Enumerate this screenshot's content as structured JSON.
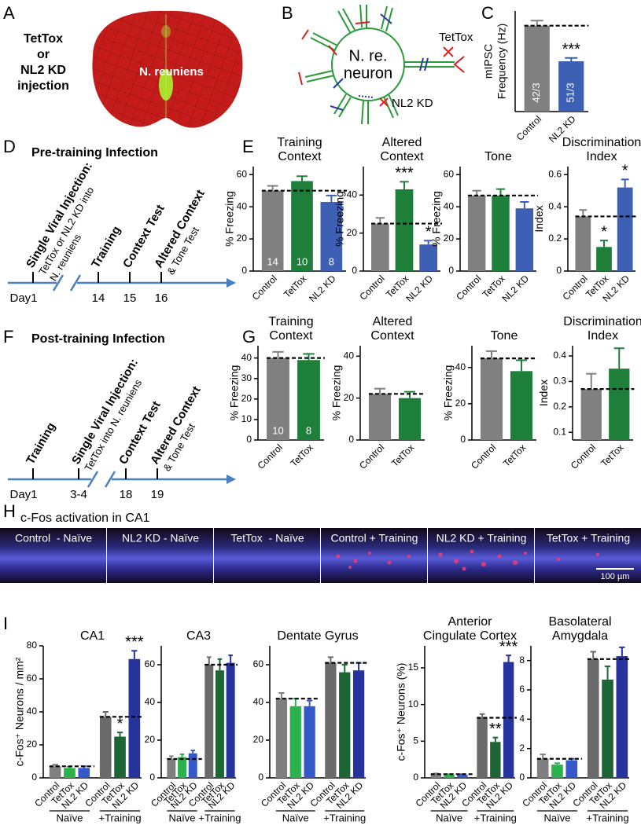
{
  "panel_letters": [
    "A",
    "B",
    "C",
    "D",
    "E",
    "F",
    "G",
    "H",
    "I"
  ],
  "panel_a": {
    "injection": [
      "TetTox",
      "or",
      "NL2 KD",
      "injection"
    ],
    "target": "N. reuniens"
  },
  "panel_b": {
    "neuron": [
      "N. re.",
      "neuron"
    ],
    "tettox": "TetTox",
    "nl2kd": "NL2 KD"
  },
  "panel_d": {
    "title": "Pre-training Infection",
    "days": [
      "Day1",
      "14",
      "15",
      "16"
    ],
    "events": [
      [
        "Single Viral Injection:",
        "TetTox or NL2 KD into",
        "N. reuniens"
      ],
      [
        "Training"
      ],
      [
        "Context Test"
      ],
      [
        "Altered Context",
        "& Tone Test"
      ]
    ]
  },
  "panel_f": {
    "title": "Post-training Infection",
    "days": [
      "Day1",
      "3-4",
      "18",
      "19"
    ],
    "events": [
      [
        "Training"
      ],
      [
        "Single Viral Injection:",
        "TetTox into N. reuniens"
      ],
      [
        "Context Test"
      ],
      [
        "Altered Context",
        "& Tone Test"
      ]
    ]
  },
  "panel_h": {
    "title": "c-Fos activation in CA1",
    "tiles": [
      "Control  - Naïve",
      "NL2 KD - Naïve",
      "TetTox  - Naïve",
      "Control + Training",
      "NL2 KD + Training",
      "TetTox + Training"
    ],
    "scale_bar": "100 µm"
  },
  "chart_data": [
    {
      "type": "bar",
      "ylabel": [
        "mIPSC",
        "Frequency (Hz)"
      ],
      "categories": [
        "Control",
        "NL2 KD"
      ],
      "values": [
        2.05,
        1.2
      ],
      "errors": [
        0.12,
        0.08
      ],
      "colors": [
        "#808080",
        "#3d60b5"
      ],
      "ylim": [
        0,
        2.4
      ],
      "significance": [
        null,
        "***"
      ],
      "n_labels": [
        "42/3",
        "51/3"
      ],
      "dashed_control_line": true
    },
    {
      "type": "bar",
      "title": [
        "Training",
        "Context"
      ],
      "ylabel": [
        "% Freezing"
      ],
      "categories": [
        "Control",
        "TetTox",
        "NL2 KD"
      ],
      "values": [
        50,
        56,
        43
      ],
      "errors": [
        3,
        3,
        4
      ],
      "colors": [
        "#808080",
        "#1e7f3a",
        "#3d60b5"
      ],
      "ylim": [
        0,
        65
      ],
      "yticks": [
        0,
        20,
        40,
        60
      ],
      "n_labels": [
        "14",
        "10",
        "8"
      ],
      "dashed_control_line": true
    },
    {
      "type": "bar",
      "title": [
        "Altered",
        "Context"
      ],
      "ylabel": [
        "% Freezing"
      ],
      "categories": [
        "Control",
        "TetTox",
        "NL2 KD"
      ],
      "values": [
        25,
        43,
        14
      ],
      "errors": [
        3,
        4,
        2
      ],
      "colors": [
        "#808080",
        "#1e7f3a",
        "#3d60b5"
      ],
      "ylim": [
        0,
        55
      ],
      "yticks": [
        0,
        20,
        40
      ],
      "significance": [
        null,
        "***",
        "*"
      ],
      "dashed_control_line": true
    },
    {
      "type": "bar",
      "title": [
        "Tone"
      ],
      "ylabel": [
        "% Freezing"
      ],
      "categories": [
        "Control",
        "TetTox",
        "NL2 KD"
      ],
      "values": [
        47,
        47,
        39
      ],
      "errors": [
        3,
        4,
        4
      ],
      "colors": [
        "#808080",
        "#1e7f3a",
        "#3d60b5"
      ],
      "ylim": [
        0,
        65
      ],
      "yticks": [
        0,
        20,
        40,
        60
      ],
      "dashed_control_line": true
    },
    {
      "type": "bar",
      "title": [
        "Discrimination",
        "Index"
      ],
      "ylabel": [
        "Index"
      ],
      "categories": [
        "Control",
        "TetTox",
        "NL2 KD"
      ],
      "values": [
        0.34,
        0.15,
        0.52
      ],
      "errors": [
        0.04,
        0.04,
        0.05
      ],
      "colors": [
        "#808080",
        "#1e7f3a",
        "#3d60b5"
      ],
      "ylim": [
        0,
        0.65
      ],
      "yticks": [
        0,
        0.2,
        0.4,
        0.6
      ],
      "significance": [
        null,
        "*",
        "*"
      ],
      "dashed_control_line": true
    },
    {
      "type": "bar",
      "title": [
        "Training",
        "Context"
      ],
      "ylabel": [
        "% Freezing"
      ],
      "categories": [
        "Control",
        "TetTox"
      ],
      "values": [
        40,
        39
      ],
      "errors": [
        3,
        3
      ],
      "colors": [
        "#808080",
        "#1e7f3a"
      ],
      "ylim": [
        0,
        46
      ],
      "yticks": [
        0,
        10,
        20,
        30,
        40
      ],
      "n_labels": [
        "10",
        "8"
      ],
      "dashed_control_line": true
    },
    {
      "type": "bar",
      "title": [
        "Altered",
        "Context"
      ],
      "ylabel": [
        "% Freezing"
      ],
      "categories": [
        "Control",
        "TetTox"
      ],
      "values": [
        22,
        20
      ],
      "errors": [
        2.5,
        3
      ],
      "colors": [
        "#808080",
        "#1e7f3a"
      ],
      "ylim": [
        0,
        45
      ],
      "yticks": [
        0,
        20,
        40
      ],
      "dashed_control_line": true
    },
    {
      "type": "bar",
      "title": [
        "Tone"
      ],
      "ylabel": [
        "% Freezing"
      ],
      "categories": [
        "Control",
        "TetTox"
      ],
      "values": [
        45,
        38
      ],
      "errors": [
        4,
        6
      ],
      "colors": [
        "#808080",
        "#1e7f3a"
      ],
      "ylim": [
        0,
        52
      ],
      "yticks": [
        0,
        20,
        40
      ],
      "dashed_control_line": true
    },
    {
      "type": "bar",
      "title": [
        "Discrimination",
        "Index"
      ],
      "ylabel": [
        "Index"
      ],
      "categories": [
        "Control",
        "TetTox"
      ],
      "values": [
        0.27,
        0.35
      ],
      "errors": [
        0.06,
        0.08
      ],
      "colors": [
        "#808080",
        "#1e7f3a"
      ],
      "ylim": [
        0.07,
        0.44
      ],
      "yticks": [
        0.1,
        0.2,
        0.3,
        0.4
      ],
      "dashed_control_line": true
    },
    {
      "type": "bar",
      "title": [
        "CA1"
      ],
      "ylabel": [
        "c-Fos⁺ Neurons / mm²"
      ],
      "categories": [
        "Control",
        "TetTox",
        "NL2 KD",
        "Control",
        "TetTox",
        "NL2 KD"
      ],
      "groups": [
        "Naïve",
        "+Training"
      ],
      "values": [
        7,
        6,
        6,
        37,
        25,
        72
      ],
      "errors": [
        1,
        0.8,
        1,
        3,
        2.5,
        5
      ],
      "colors": [
        "#7f7f7f",
        "#2bb24c",
        "#3558c8",
        "#6a6a6a",
        "#1d6532",
        "#27339c"
      ],
      "ylim": [
        0,
        80
      ],
      "yticks": [
        0,
        20,
        40,
        60,
        80
      ],
      "significance": [
        null,
        null,
        null,
        null,
        "*",
        "***"
      ],
      "dashed_control_line": true
    },
    {
      "type": "bar",
      "title": [
        "CA3"
      ],
      "categories": [
        "Control",
        "TetTox",
        "NL2 KD",
        "Control",
        "TetTox",
        "NL2 KD"
      ],
      "groups": [
        "Naïve",
        "+Training"
      ],
      "values": [
        10,
        11,
        13,
        60,
        57,
        61
      ],
      "errors": [
        1.5,
        1.5,
        1.5,
        4,
        6,
        4
      ],
      "colors": [
        "#7f7f7f",
        "#2bb24c",
        "#3558c8",
        "#6a6a6a",
        "#1d6532",
        "#27339c"
      ],
      "ylim": [
        0,
        70
      ],
      "yticks": [
        0,
        20,
        40,
        60
      ],
      "dashed_control_line": true
    },
    {
      "type": "bar",
      "title": [
        "Dentate Gyrus"
      ],
      "categories": [
        "Control",
        "TetTox",
        "NL2 KD",
        "Control",
        "TetTox",
        "NL2 KD"
      ],
      "groups": [
        "Naïve",
        "+Training"
      ],
      "values": [
        42,
        38,
        38,
        61,
        56,
        57
      ],
      "errors": [
        3,
        4,
        3,
        3,
        4,
        4
      ],
      "colors": [
        "#7f7f7f",
        "#2bb24c",
        "#3558c8",
        "#6a6a6a",
        "#1d6532",
        "#27339c"
      ],
      "ylim": [
        0,
        70
      ],
      "yticks": [
        0,
        20,
        40,
        60
      ],
      "dashed_control_line": true
    },
    {
      "type": "bar",
      "title": [
        "Anterior",
        "Cingulate Cortex"
      ],
      "ylabel": [
        "c-Fos⁺ Neurons (%)"
      ],
      "categories": [
        "Control",
        "TetTox",
        "NL2 KD",
        "Control",
        "TetTox",
        "NL2 KD"
      ],
      "groups": [
        "Naïve",
        "+Training"
      ],
      "values": [
        0.5,
        0.4,
        0.4,
        8.2,
        4.9,
        15.8
      ],
      "errors": [
        0.1,
        0.1,
        0.1,
        0.5,
        0.6,
        0.9
      ],
      "colors": [
        "#7f7f7f",
        "#2bb24c",
        "#3558c8",
        "#6a6a6a",
        "#1d6532",
        "#27339c"
      ],
      "ylim": [
        0,
        18
      ],
      "yticks": [
        0,
        5,
        10,
        15
      ],
      "significance": [
        null,
        null,
        null,
        null,
        "**",
        "***"
      ],
      "dashed_control_line": true
    },
    {
      "type": "bar",
      "title": [
        "Basolateral",
        "Amygdala"
      ],
      "categories": [
        "Control",
        "TetTox",
        "NL2 KD",
        "Control",
        "TetTox",
        "NL2 KD"
      ],
      "groups": [
        "Naïve",
        "+Training"
      ],
      "values": [
        1.3,
        0.9,
        1.2,
        8.1,
        6.7,
        8.3
      ],
      "errors": [
        0.3,
        0.1,
        0.1,
        0.5,
        0.9,
        0.6
      ],
      "colors": [
        "#7f7f7f",
        "#2bb24c",
        "#3558c8",
        "#6a6a6a",
        "#1d6532",
        "#27339c"
      ],
      "ylim": [
        0,
        9
      ],
      "yticks": [
        0,
        2,
        4,
        6,
        8
      ],
      "dashed_control_line": true
    }
  ]
}
